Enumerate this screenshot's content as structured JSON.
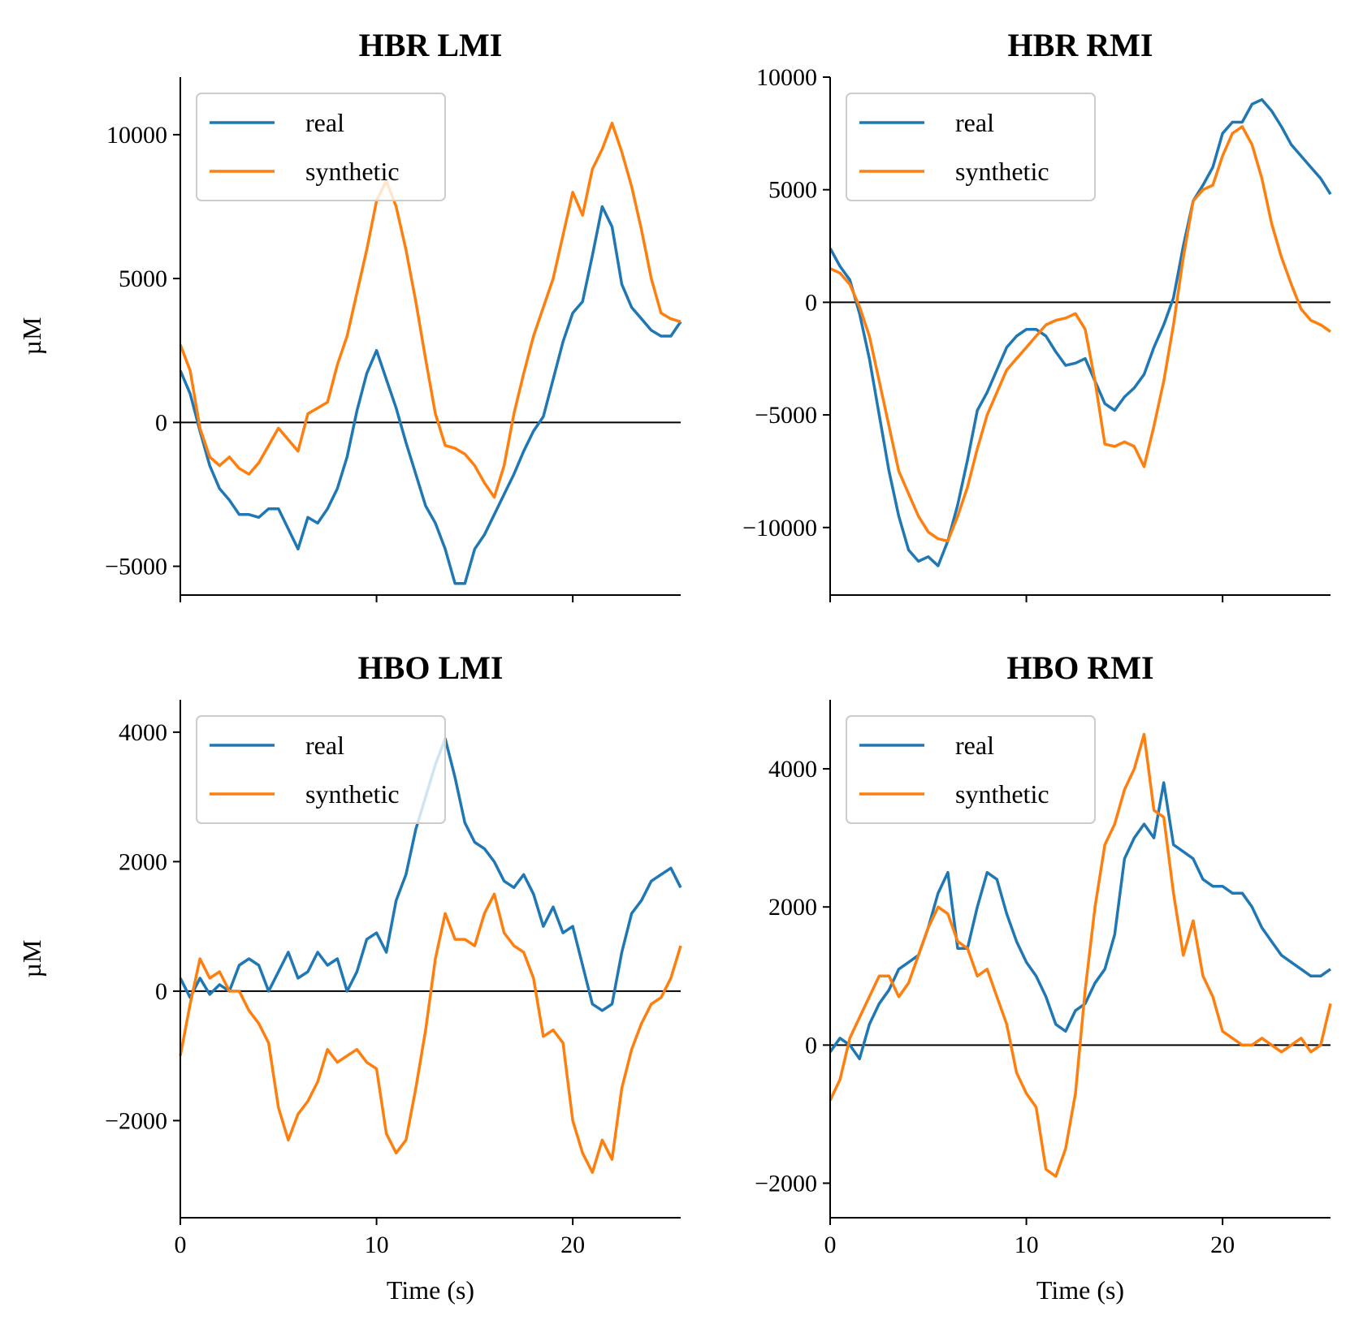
{
  "figure": {
    "ylabel": "µM",
    "xlabel": "Time (s)"
  },
  "colors": {
    "real": "#1f77b4",
    "synthetic": "#ff7f0e"
  },
  "chart_data": [
    {
      "type": "line",
      "title": "HBR LMI",
      "ylabel": "µM",
      "xlabel": "",
      "xlim": [
        0,
        25.5
      ],
      "ylim": [
        -6000,
        12000
      ],
      "yticks": [
        -5000,
        0,
        5000,
        10000
      ],
      "ytick_labels": [
        "−5000",
        "0",
        "5000",
        "10000"
      ],
      "xticks": [
        0,
        10,
        20
      ],
      "xtick_labels": [],
      "legend": "top-left",
      "series": [
        {
          "name": "real",
          "x": [
            0,
            0.5,
            1,
            1.5,
            2,
            2.5,
            3,
            3.5,
            4,
            4.5,
            5,
            5.5,
            6,
            6.5,
            7,
            7.5,
            8,
            8.5,
            9,
            9.5,
            10,
            10.5,
            11,
            11.5,
            12,
            12.5,
            13,
            13.5,
            14,
            14.5,
            15,
            15.5,
            16,
            16.5,
            17,
            17.5,
            18,
            18.5,
            19,
            19.5,
            20,
            20.5,
            21,
            21.5,
            22,
            22.5,
            23,
            23.5,
            24,
            24.5,
            25,
            25.5
          ],
          "values": [
            1800,
            1000,
            -300,
            -1500,
            -2300,
            -2700,
            -3200,
            -3200,
            -3300,
            -3000,
            -3000,
            -3700,
            -4400,
            -3300,
            -3500,
            -3000,
            -2300,
            -1200,
            400,
            1700,
            2500,
            1500,
            500,
            -700,
            -1800,
            -2900,
            -3500,
            -4400,
            -5600,
            -5600,
            -4400,
            -3900,
            -3200,
            -2500,
            -1800,
            -1000,
            -300,
            200,
            1500,
            2800,
            3800,
            4200,
            5800,
            7500,
            6800,
            4800,
            4000,
            3600,
            3200,
            3000,
            3000,
            3500
          ]
        },
        {
          "name": "synthetic",
          "x": [
            0,
            0.5,
            1,
            1.5,
            2,
            2.5,
            3,
            3.5,
            4,
            4.5,
            5,
            5.5,
            6,
            6.5,
            7,
            7.5,
            8,
            8.5,
            9,
            9.5,
            10,
            10.5,
            11,
            11.5,
            12,
            12.5,
            13,
            13.5,
            14,
            14.5,
            15,
            15.5,
            16,
            16.5,
            17,
            17.5,
            18,
            18.5,
            19,
            19.5,
            20,
            20.5,
            21,
            21.5,
            22,
            22.5,
            23,
            23.5,
            24,
            24.5,
            25,
            25.5
          ],
          "values": [
            2700,
            1800,
            -200,
            -1200,
            -1500,
            -1200,
            -1600,
            -1800,
            -1400,
            -800,
            -200,
            -600,
            -1000,
            300,
            500,
            700,
            2000,
            3000,
            4500,
            6000,
            7700,
            8400,
            7500,
            6000,
            4200,
            2200,
            300,
            -800,
            -900,
            -1100,
            -1500,
            -2100,
            -2600,
            -1500,
            300,
            1700,
            3000,
            4000,
            5000,
            6500,
            8000,
            7200,
            8800,
            9500,
            10400,
            9400,
            8200,
            6700,
            5000,
            3800,
            3600,
            3500
          ]
        }
      ]
    },
    {
      "type": "line",
      "title": "HBR RMI",
      "ylabel": "",
      "xlabel": "",
      "xlim": [
        0,
        25.5
      ],
      "ylim": [
        -13000,
        10000
      ],
      "yticks": [
        -10000,
        -5000,
        0,
        5000,
        10000
      ],
      "ytick_labels": [
        "−10000",
        "−5000",
        "0",
        "5000",
        "10000"
      ],
      "xticks": [
        0,
        10,
        20
      ],
      "xtick_labels": [],
      "legend": "top-left",
      "series": [
        {
          "name": "real",
          "x": [
            0,
            0.5,
            1,
            1.5,
            2,
            2.5,
            3,
            3.5,
            4,
            4.5,
            5,
            5.5,
            6,
            6.5,
            7,
            7.5,
            8,
            8.5,
            9,
            9.5,
            10,
            10.5,
            11,
            11.5,
            12,
            12.5,
            13,
            13.5,
            14,
            14.5,
            15,
            15.5,
            16,
            16.5,
            17,
            17.5,
            18,
            18.5,
            19,
            19.5,
            20,
            20.5,
            21,
            21.5,
            22,
            22.5,
            23,
            23.5,
            24,
            24.5,
            25,
            25.5
          ],
          "values": [
            2400,
            1600,
            1000,
            -500,
            -2500,
            -5000,
            -7500,
            -9500,
            -11000,
            -11500,
            -11300,
            -11700,
            -10600,
            -9000,
            -7000,
            -4800,
            -4000,
            -3000,
            -2000,
            -1500,
            -1200,
            -1200,
            -1500,
            -2200,
            -2800,
            -2700,
            -2500,
            -3500,
            -4500,
            -4800,
            -4200,
            -3800,
            -3200,
            -2000,
            -1000,
            200,
            2500,
            4500,
            5200,
            6000,
            7500,
            8000,
            8000,
            8800,
            9000,
            8500,
            7800,
            7000,
            6500,
            6000,
            5500,
            4800
          ]
        },
        {
          "name": "synthetic",
          "x": [
            0,
            0.5,
            1,
            1.5,
            2,
            2.5,
            3,
            3.5,
            4,
            4.5,
            5,
            5.5,
            6,
            6.5,
            7,
            7.5,
            8,
            8.5,
            9,
            9.5,
            10,
            10.5,
            11,
            11.5,
            12,
            12.5,
            13,
            13.5,
            14,
            14.5,
            15,
            15.5,
            16,
            16.5,
            17,
            17.5,
            18,
            18.5,
            19,
            19.5,
            20,
            20.5,
            21,
            21.5,
            22,
            22.5,
            23,
            23.5,
            24,
            24.5,
            25,
            25.5
          ],
          "values": [
            1500,
            1300,
            800,
            -200,
            -1500,
            -3500,
            -5500,
            -7500,
            -8500,
            -9500,
            -10200,
            -10500,
            -10600,
            -9500,
            -8200,
            -6500,
            -5000,
            -4000,
            -3000,
            -2500,
            -2000,
            -1500,
            -1000,
            -800,
            -700,
            -500,
            -1200,
            -3500,
            -6300,
            -6400,
            -6200,
            -6400,
            -7300,
            -5500,
            -3500,
            -1000,
            2000,
            4500,
            5000,
            5200,
            6500,
            7500,
            7800,
            7000,
            5500,
            3500,
            2000,
            800,
            -300,
            -800,
            -1000,
            -1300
          ]
        }
      ]
    },
    {
      "type": "line",
      "title": "HBO LMI",
      "ylabel": "µM",
      "xlabel": "Time (s)",
      "xlim": [
        0,
        25.5
      ],
      "ylim": [
        -3500,
        4500
      ],
      "yticks": [
        -2000,
        0,
        2000,
        4000
      ],
      "ytick_labels": [
        "−2000",
        "0",
        "2000",
        "4000"
      ],
      "xticks": [
        0,
        10,
        20
      ],
      "xtick_labels": [
        "0",
        "10",
        "20"
      ],
      "legend": "top-left",
      "series": [
        {
          "name": "real",
          "x": [
            0,
            0.5,
            1,
            1.5,
            2,
            2.5,
            3,
            3.5,
            4,
            4.5,
            5,
            5.5,
            6,
            6.5,
            7,
            7.5,
            8,
            8.5,
            9,
            9.5,
            10,
            10.5,
            11,
            11.5,
            12,
            12.5,
            13,
            13.5,
            14,
            14.5,
            15,
            15.5,
            16,
            16.5,
            17,
            17.5,
            18,
            18.5,
            19,
            19.5,
            20,
            20.5,
            21,
            21.5,
            22,
            22.5,
            23,
            23.5,
            24,
            24.5,
            25,
            25.5
          ],
          "values": [
            200,
            -100,
            200,
            -50,
            100,
            0,
            400,
            500,
            400,
            0,
            300,
            600,
            200,
            300,
            600,
            400,
            500,
            0,
            300,
            800,
            900,
            600,
            1400,
            1800,
            2500,
            3000,
            3500,
            3900,
            3300,
            2600,
            2300,
            2200,
            2000,
            1700,
            1600,
            1800,
            1500,
            1000,
            1300,
            900,
            1000,
            400,
            -200,
            -300,
            -200,
            600,
            1200,
            1400,
            1700,
            1800,
            1900,
            1600
          ]
        },
        {
          "name": "synthetic",
          "x": [
            0,
            0.5,
            1,
            1.5,
            2,
            2.5,
            3,
            3.5,
            4,
            4.5,
            5,
            5.5,
            6,
            6.5,
            7,
            7.5,
            8,
            8.5,
            9,
            9.5,
            10,
            10.5,
            11,
            11.5,
            12,
            12.5,
            13,
            13.5,
            14,
            14.5,
            15,
            15.5,
            16,
            16.5,
            17,
            17.5,
            18,
            18.5,
            19,
            19.5,
            20,
            20.5,
            21,
            21.5,
            22,
            22.5,
            23,
            23.5,
            24,
            24.5,
            25,
            25.5
          ],
          "values": [
            -1000,
            -200,
            500,
            200,
            300,
            0,
            0,
            -300,
            -500,
            -800,
            -1800,
            -2300,
            -1900,
            -1700,
            -1400,
            -900,
            -1100,
            -1000,
            -900,
            -1100,
            -1200,
            -2200,
            -2500,
            -2300,
            -1500,
            -600,
            500,
            1200,
            800,
            800,
            700,
            1200,
            1500,
            900,
            700,
            600,
            200,
            -700,
            -600,
            -800,
            -2000,
            -2500,
            -2800,
            -2300,
            -2600,
            -1500,
            -900,
            -500,
            -200,
            -100,
            200,
            700
          ]
        }
      ]
    },
    {
      "type": "line",
      "title": "HBO RMI",
      "ylabel": "",
      "xlabel": "Time (s)",
      "xlim": [
        0,
        25.5
      ],
      "ylim": [
        -2500,
        5000
      ],
      "yticks": [
        -2000,
        0,
        2000,
        4000
      ],
      "ytick_labels": [
        "−2000",
        "0",
        "2000",
        "4000"
      ],
      "xticks": [
        0,
        10,
        20
      ],
      "xtick_labels": [
        "0",
        "10",
        "20"
      ],
      "legend": "top-left",
      "series": [
        {
          "name": "real",
          "x": [
            0,
            0.5,
            1,
            1.5,
            2,
            2.5,
            3,
            3.5,
            4,
            4.5,
            5,
            5.5,
            6,
            6.5,
            7,
            7.5,
            8,
            8.5,
            9,
            9.5,
            10,
            10.5,
            11,
            11.5,
            12,
            12.5,
            13,
            13.5,
            14,
            14.5,
            15,
            15.5,
            16,
            16.5,
            17,
            17.5,
            18,
            18.5,
            19,
            19.5,
            20,
            20.5,
            21,
            21.5,
            22,
            22.5,
            23,
            23.5,
            24,
            24.5,
            25,
            25.5
          ],
          "values": [
            -100,
            100,
            0,
            -200,
            300,
            600,
            800,
            1100,
            1200,
            1300,
            1700,
            2200,
            2500,
            1400,
            1400,
            2000,
            2500,
            2400,
            1900,
            1500,
            1200,
            1000,
            700,
            300,
            200,
            500,
            600,
            900,
            1100,
            1600,
            2700,
            3000,
            3200,
            3000,
            3800,
            2900,
            2800,
            2700,
            2400,
            2300,
            2300,
            2200,
            2200,
            2000,
            1700,
            1500,
            1300,
            1200,
            1100,
            1000,
            1000,
            1100
          ]
        },
        {
          "name": "synthetic",
          "x": [
            0,
            0.5,
            1,
            1.5,
            2,
            2.5,
            3,
            3.5,
            4,
            4.5,
            5,
            5.5,
            6,
            6.5,
            7,
            7.5,
            8,
            8.5,
            9,
            9.5,
            10,
            10.5,
            11,
            11.5,
            12,
            12.5,
            13,
            13.5,
            14,
            14.5,
            15,
            15.5,
            16,
            16.5,
            17,
            17.5,
            18,
            18.5,
            19,
            19.5,
            20,
            20.5,
            21,
            21.5,
            22,
            22.5,
            23,
            23.5,
            24,
            24.5,
            25,
            25.5
          ],
          "values": [
            -800,
            -500,
            100,
            400,
            700,
            1000,
            1000,
            700,
            900,
            1300,
            1700,
            2000,
            1900,
            1500,
            1400,
            1000,
            1100,
            700,
            300,
            -400,
            -700,
            -900,
            -1800,
            -1900,
            -1500,
            -700,
            800,
            2000,
            2900,
            3200,
            3700,
            4000,
            4500,
            3400,
            3300,
            2200,
            1300,
            1800,
            1000,
            700,
            200,
            100,
            0,
            0,
            100,
            0,
            -100,
            0,
            100,
            -100,
            0,
            600
          ]
        }
      ]
    }
  ]
}
